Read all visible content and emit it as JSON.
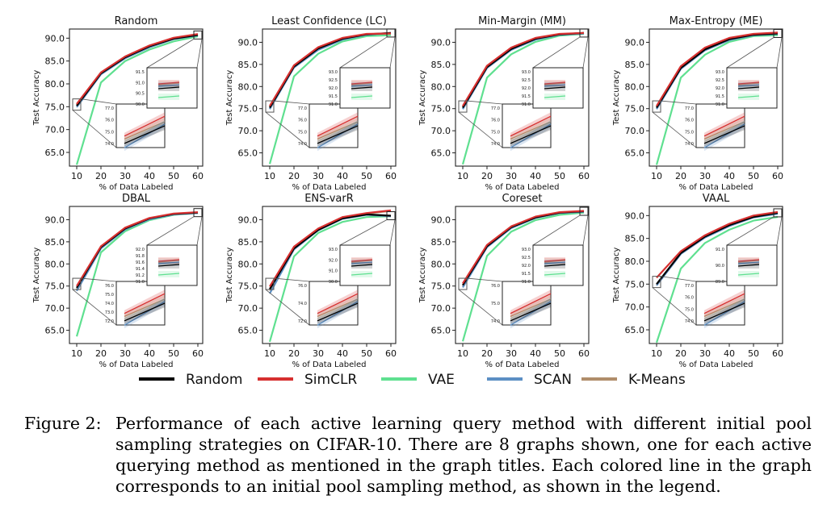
{
  "chart_data": [
    {
      "type": "line",
      "title": "Random",
      "xlabel": "% of Data Labeled",
      "ylabel": "Test Accuracy",
      "x": [
        10,
        20,
        30,
        40,
        50,
        60
      ],
      "xlim": [
        7,
        62
      ],
      "ylim": [
        62,
        92
      ],
      "yticks": [
        "65.0",
        "70.0",
        "75.0",
        "80.0",
        "85.0",
        "90.0"
      ],
      "series": [
        {
          "name": "Random",
          "values": [
            75.2,
            82.3,
            85.8,
            88.2,
            89.9,
            90.7
          ]
        },
        {
          "name": "SimCLR",
          "values": [
            75.6,
            82.5,
            86.0,
            88.4,
            90.1,
            90.9
          ]
        },
        {
          "name": "VAE",
          "values": [
            62.3,
            80.3,
            85.0,
            87.5,
            89.3,
            90.4
          ]
        },
        {
          "name": "SCAN",
          "values": [
            74.9,
            82.1,
            85.6,
            88.0,
            89.8,
            90.6
          ]
        },
        {
          "name": "K-Means",
          "values": [
            75.4,
            82.2,
            85.7,
            88.1,
            89.9,
            90.8
          ]
        }
      ],
      "inset": {
        "ticks_top": [
          "91.5",
          "91.0",
          "90.5",
          "90.0"
        ],
        "ticks_bottom": [
          "77.0",
          "76.0",
          "75.0",
          "74.0"
        ]
      }
    },
    {
      "type": "line",
      "title": "Least Confidence (LC)",
      "xlabel": "% of Data Labeled",
      "ylabel": "Test Accuracy",
      "x": [
        10,
        20,
        30,
        40,
        50,
        60
      ],
      "xlim": [
        7,
        62
      ],
      "ylim": [
        62,
        93
      ],
      "yticks": [
        "65.0",
        "70.0",
        "75.0",
        "80.0",
        "85.0",
        "90.0"
      ],
      "series": [
        {
          "name": "Random",
          "values": [
            75.2,
            84.5,
            88.6,
            90.8,
            91.8,
            92.1
          ]
        },
        {
          "name": "SimCLR",
          "values": [
            75.6,
            84.8,
            88.9,
            91.0,
            91.9,
            92.0
          ]
        },
        {
          "name": "VAE",
          "values": [
            62.5,
            82.3,
            87.4,
            90.2,
            91.4,
            91.6
          ]
        },
        {
          "name": "SCAN",
          "values": [
            74.9,
            84.3,
            88.3,
            90.6,
            91.7,
            92.1
          ]
        },
        {
          "name": "K-Means",
          "values": [
            75.4,
            84.6,
            88.7,
            90.9,
            91.8,
            92.0
          ]
        }
      ],
      "inset": {
        "ticks_top": [
          "93.0",
          "92.5",
          "92.0",
          "91.5",
          "91.0"
        ],
        "ticks_bottom": [
          "77.0",
          "76.0",
          "75.0",
          "74.0"
        ]
      }
    },
    {
      "type": "line",
      "title": "Min-Margin (MM)",
      "xlabel": "% of Data Labeled",
      "ylabel": "Test Accuracy",
      "x": [
        10,
        20,
        30,
        40,
        50,
        60
      ],
      "xlim": [
        7,
        62
      ],
      "ylim": [
        62,
        93
      ],
      "yticks": [
        "65.0",
        "70.0",
        "75.0",
        "80.0",
        "85.0",
        "90.0"
      ],
      "series": [
        {
          "name": "Random",
          "values": [
            75.2,
            84.4,
            88.5,
            90.8,
            91.8,
            92.1
          ]
        },
        {
          "name": "SimCLR",
          "values": [
            75.6,
            84.7,
            88.8,
            91.0,
            91.9,
            92.1
          ]
        },
        {
          "name": "VAE",
          "values": [
            62.4,
            82.0,
            87.3,
            90.1,
            91.5,
            91.9
          ]
        },
        {
          "name": "SCAN",
          "values": [
            74.9,
            84.2,
            88.3,
            90.6,
            91.7,
            92.0
          ]
        },
        {
          "name": "K-Means",
          "values": [
            75.4,
            84.5,
            88.6,
            90.9,
            91.8,
            92.1
          ]
        }
      ],
      "inset": {
        "ticks_top": [
          "93.0",
          "92.5",
          "92.0",
          "91.5",
          "91.0"
        ],
        "ticks_bottom": [
          "77.0",
          "76.0",
          "75.0",
          "74.0"
        ]
      }
    },
    {
      "type": "line",
      "title": "Max-Entropy (ME)",
      "xlabel": "% of Data Labeled",
      "ylabel": "Test Accuracy",
      "x": [
        10,
        20,
        30,
        40,
        50,
        60
      ],
      "xlim": [
        7,
        62
      ],
      "ylim": [
        62,
        93
      ],
      "yticks": [
        "65.0",
        "70.0",
        "75.0",
        "80.0",
        "85.0",
        "90.0"
      ],
      "series": [
        {
          "name": "Random",
          "values": [
            75.2,
            84.2,
            88.4,
            90.7,
            91.7,
            92.0
          ]
        },
        {
          "name": "SimCLR",
          "values": [
            75.6,
            84.6,
            88.8,
            91.0,
            91.9,
            92.2
          ]
        },
        {
          "name": "VAE",
          "values": [
            62.3,
            82.0,
            87.2,
            90.1,
            91.4,
            91.6
          ]
        },
        {
          "name": "SCAN",
          "values": [
            74.9,
            84.0,
            88.2,
            90.5,
            91.6,
            91.9
          ]
        },
        {
          "name": "K-Means",
          "values": [
            75.4,
            84.3,
            88.5,
            90.8,
            91.8,
            92.0
          ]
        }
      ],
      "inset": {
        "ticks_top": [
          "93.0",
          "92.5",
          "92.0",
          "91.5",
          "91.0"
        ],
        "ticks_bottom": [
          "77.0",
          "76.0",
          "75.0",
          "74.0"
        ]
      }
    },
    {
      "type": "line",
      "title": "DBAL",
      "xlabel": "% of Data Labeled",
      "ylabel": "Test Accuracy",
      "x": [
        10,
        20,
        30,
        40,
        50,
        60
      ],
      "xlim": [
        7,
        62
      ],
      "ylim": [
        62,
        93
      ],
      "yticks": [
        "65.0",
        "70.0",
        "75.0",
        "80.0",
        "85.0",
        "90.0"
      ],
      "series": [
        {
          "name": "Random",
          "values": [
            74.6,
            83.8,
            88.0,
            90.3,
            91.3,
            91.6
          ]
        },
        {
          "name": "SimCLR",
          "values": [
            75.0,
            84.0,
            88.2,
            90.4,
            91.4,
            91.7
          ]
        },
        {
          "name": "VAE",
          "values": [
            63.6,
            82.6,
            87.4,
            89.9,
            91.1,
            91.5
          ]
        },
        {
          "name": "SCAN",
          "values": [
            73.9,
            83.5,
            87.8,
            90.1,
            91.2,
            91.5
          ]
        },
        {
          "name": "K-Means",
          "values": [
            74.2,
            83.6,
            87.9,
            90.2,
            91.2,
            91.6
          ]
        }
      ],
      "inset": {
        "ticks_top": [
          "92.0",
          "91.8",
          "91.6",
          "91.4",
          "91.2",
          "91.0"
        ],
        "ticks_bottom": [
          "76.0",
          "75.0",
          "74.0",
          "73.0",
          "72.0"
        ]
      }
    },
    {
      "type": "line",
      "title": "ENS-varR",
      "xlabel": "% of Data Labeled",
      "ylabel": "Test Accuracy",
      "x": [
        10,
        20,
        30,
        40,
        50,
        60
      ],
      "xlim": [
        7,
        62
      ],
      "ylim": [
        62,
        93
      ],
      "yticks": [
        "65.0",
        "70.0",
        "75.0",
        "80.0",
        "85.0",
        "90.0"
      ],
      "series": [
        {
          "name": "Random",
          "values": [
            74.3,
            83.5,
            87.7,
            90.3,
            91.2,
            90.9
          ]
        },
        {
          "name": "SimCLR",
          "values": [
            74.9,
            83.9,
            88.0,
            90.6,
            91.5,
            92.1
          ]
        },
        {
          "name": "VAE",
          "values": [
            62.4,
            81.7,
            87.0,
            89.5,
            90.6,
            90.8
          ]
        },
        {
          "name": "SCAN",
          "values": [
            73.3,
            83.3,
            87.6,
            90.2,
            91.1,
            90.8
          ]
        },
        {
          "name": "K-Means",
          "values": [
            74.0,
            83.6,
            87.8,
            90.4,
            91.4,
            92.0
          ]
        }
      ],
      "inset": {
        "ticks_top": [
          "93.0",
          "92.0",
          "91.0",
          "90.0"
        ],
        "ticks_bottom": [
          "76.0",
          "74.0",
          "72.0"
        ]
      }
    },
    {
      "type": "line",
      "title": "Coreset",
      "xlabel": "% of Data Labeled",
      "ylabel": "Test Accuracy",
      "x": [
        10,
        20,
        30,
        40,
        50,
        60
      ],
      "xlim": [
        7,
        62
      ],
      "ylim": [
        62,
        93
      ],
      "yticks": [
        "65.0",
        "70.0",
        "75.0",
        "80.0",
        "85.0",
        "90.0"
      ],
      "series": [
        {
          "name": "Random",
          "values": [
            75.2,
            84.0,
            88.3,
            90.5,
            91.6,
            91.9
          ]
        },
        {
          "name": "SimCLR",
          "values": [
            75.6,
            84.3,
            88.5,
            90.7,
            91.7,
            92.0
          ]
        },
        {
          "name": "VAE",
          "values": [
            62.5,
            81.8,
            87.3,
            89.9,
            91.1,
            91.6
          ]
        },
        {
          "name": "SCAN",
          "values": [
            74.7,
            83.8,
            88.1,
            90.4,
            91.5,
            91.8
          ]
        },
        {
          "name": "K-Means",
          "values": [
            75.0,
            83.9,
            88.2,
            90.5,
            91.5,
            91.9
          ]
        }
      ],
      "inset": {
        "ticks_top": [
          "93.0",
          "92.5",
          "92.0",
          "91.5",
          "91.0"
        ],
        "ticks_bottom": [
          "76.0",
          "75.0",
          "74.0"
        ]
      }
    },
    {
      "type": "line",
      "title": "VAAL",
      "xlabel": "% of Data Labeled",
      "ylabel": "Test Accuracy",
      "x": [
        10,
        20,
        30,
        40,
        50,
        60
      ],
      "xlim": [
        7,
        62
      ],
      "ylim": [
        62,
        92
      ],
      "yticks": [
        "65.0",
        "70.0",
        "75.0",
        "80.0",
        "85.0",
        "90.0"
      ],
      "series": [
        {
          "name": "Random",
          "values": [
            75.0,
            81.8,
            85.4,
            87.9,
            89.7,
            90.6
          ]
        },
        {
          "name": "SimCLR",
          "values": [
            76.4,
            82.2,
            85.7,
            88.2,
            90.0,
            90.8
          ]
        },
        {
          "name": "VAE",
          "values": [
            62.2,
            78.4,
            84.0,
            86.9,
            88.9,
            89.7
          ]
        },
        {
          "name": "SCAN",
          "values": [
            74.7,
            81.6,
            85.2,
            87.7,
            89.6,
            90.4
          ]
        },
        {
          "name": "K-Means",
          "values": [
            74.9,
            81.7,
            85.3,
            87.8,
            89.7,
            90.5
          ]
        }
      ],
      "inset": {
        "ticks_top": [
          "91.0",
          "90.0",
          "89.0"
        ],
        "ticks_bottom": [
          "77.0",
          "76.0",
          "75.0",
          "74.0"
        ]
      }
    }
  ],
  "legend": [
    {
      "name": "Random",
      "color": "#000000"
    },
    {
      "name": "SimCLR",
      "color": "#d62f2f"
    },
    {
      "name": "VAE",
      "color": "#5fe090"
    },
    {
      "name": "SCAN",
      "color": "#5c8fc4"
    },
    {
      "name": "K-Means",
      "color": "#b08d6a"
    }
  ],
  "caption": {
    "label": "Figure 2:",
    "text": "Performance of each active learning query method with different initial pool sampling strategies on CIFAR-10. There are 8 graphs shown, one for each active querying method as mentioned in the graph titles. Each colored line in the graph corresponds to an initial pool sampling method, as shown in the legend."
  }
}
